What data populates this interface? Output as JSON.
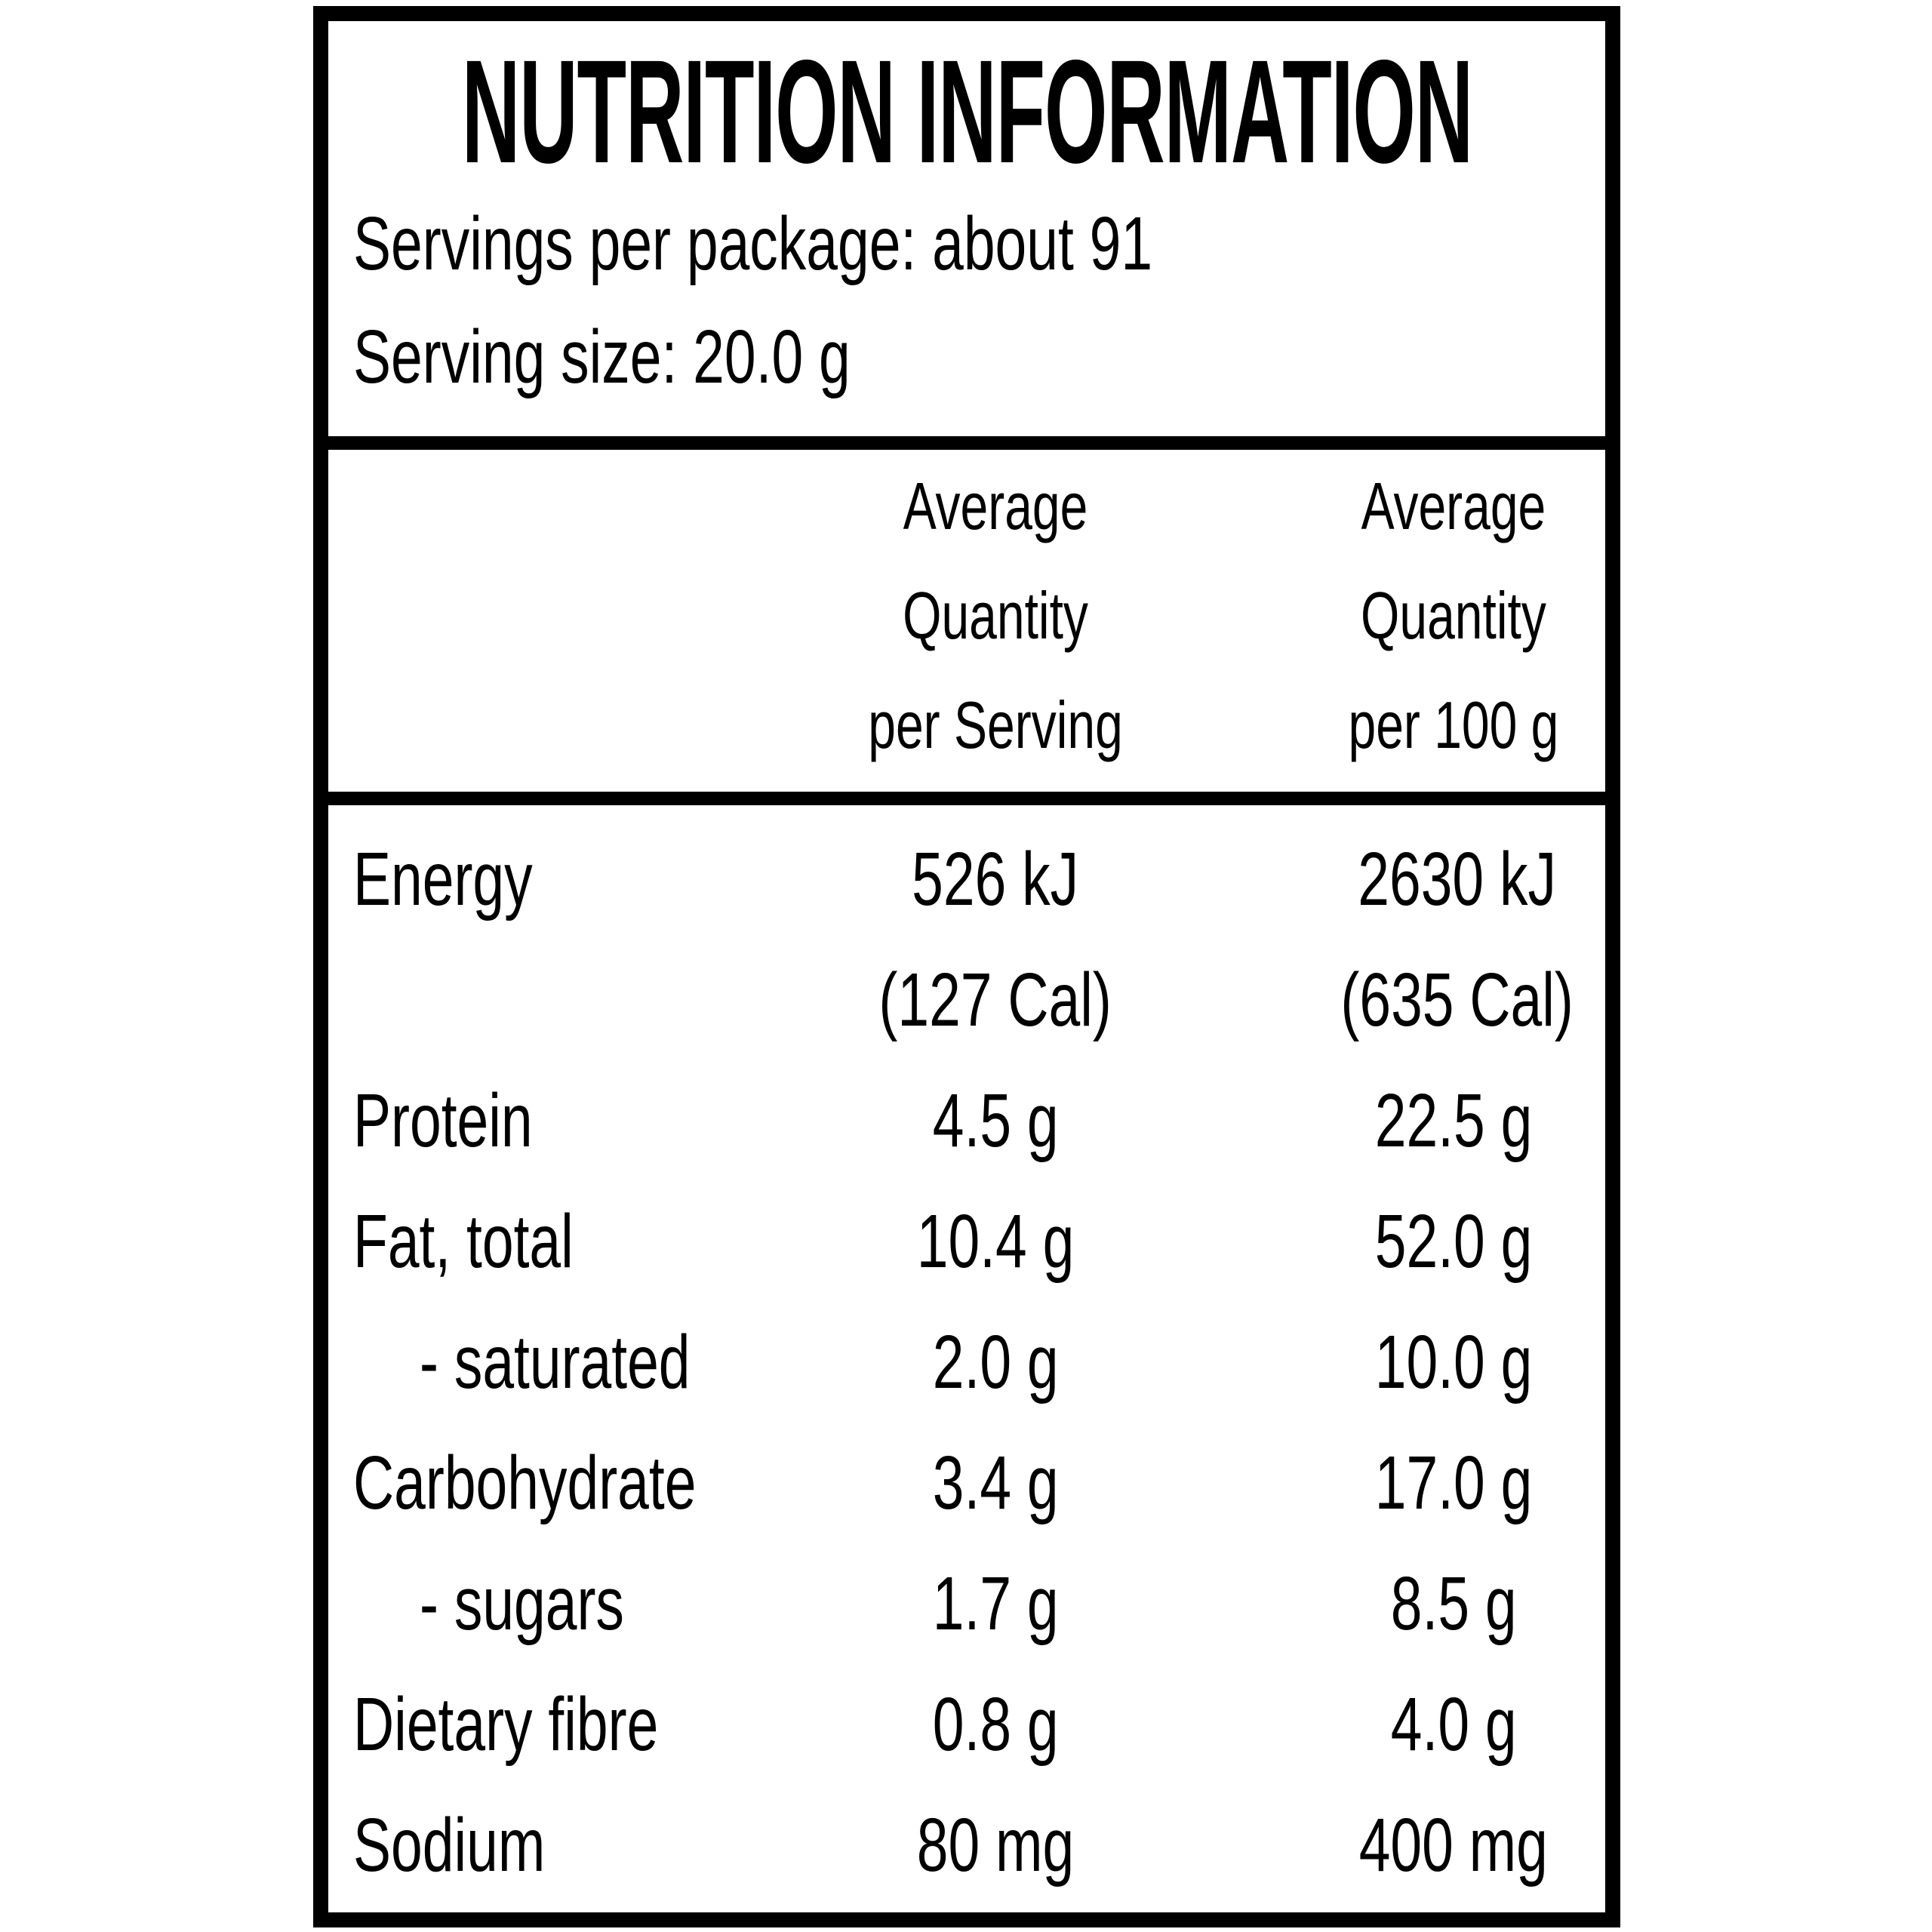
{
  "colors": {
    "text": "#000000",
    "background": "#ffffff",
    "border": "#000000"
  },
  "panel": {
    "title": "NUTRITION INFORMATION",
    "servings_line": "Servings per package: about 91",
    "serving_size_line": "Serving size: 20.0 g"
  },
  "table": {
    "header": {
      "per_serving_lines": [
        "Average",
        "Quantity",
        "per Serving"
      ],
      "per_100g_lines": [
        "Average",
        "Quantity",
        "per 100 g"
      ]
    },
    "rows": [
      {
        "label": "Energy",
        "per_serving": "526 kJ",
        "per_serving_secondary": "(127 Cal)",
        "per_100g": "2630 kJ",
        "per_100g_secondary": "(635 Cal)"
      },
      {
        "label": "Protein",
        "per_serving": "4.5 g",
        "per_100g": "22.5 g"
      },
      {
        "label": "Fat, total",
        "per_serving": "10.4 g",
        "per_100g": "52.0 g"
      },
      {
        "label": "- saturated",
        "per_serving": "2.0 g",
        "per_100g": "10.0 g"
      },
      {
        "label": "Carbohydrate",
        "per_serving": "3.4 g",
        "per_100g": "17.0 g"
      },
      {
        "label": "- sugars",
        "per_serving": "1.7 g",
        "per_100g": "8.5 g"
      },
      {
        "label": "Dietary fibre",
        "per_serving": "0.8 g",
        "per_100g": "4.0 g"
      },
      {
        "label": "Sodium",
        "per_serving": "80 mg",
        "per_100g": "400 mg"
      }
    ]
  }
}
